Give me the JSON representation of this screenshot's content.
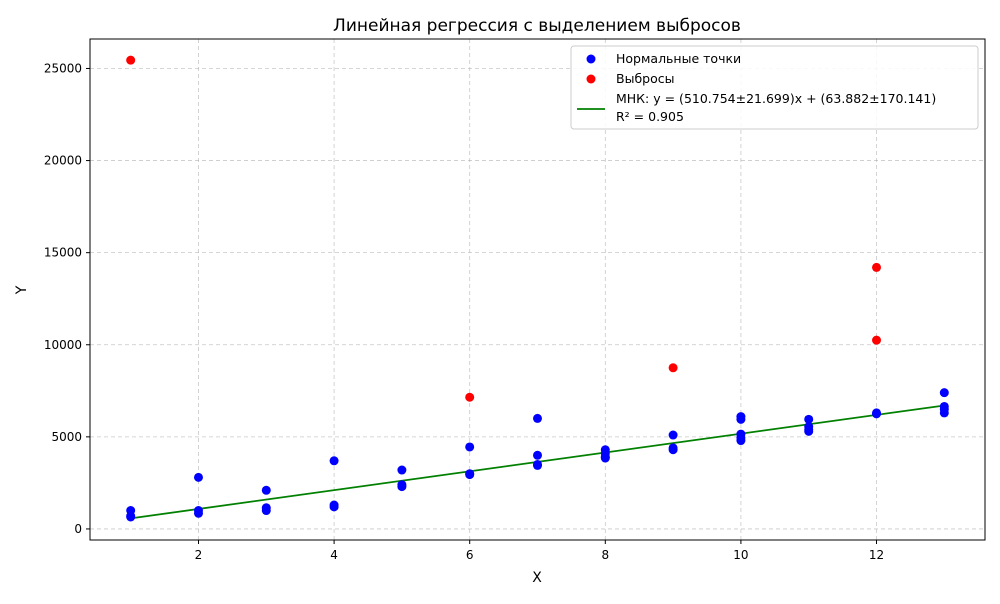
{
  "chart_data": {
    "type": "scatter",
    "title": "Линейная регрессия с выделением выбросов",
    "xlabel": "X",
    "ylabel": "Y",
    "xlim": [
      0.4,
      13.6
    ],
    "ylim": [
      -600,
      26600
    ],
    "x_ticks": [
      2,
      4,
      6,
      8,
      10,
      12
    ],
    "y_ticks": [
      0,
      5000,
      10000,
      15000,
      20000,
      25000
    ],
    "grid": true,
    "legend_position": "top-right",
    "series": [
      {
        "name": "Нормальные точки",
        "kind": "scatter",
        "color": "#0000ff",
        "points": [
          [
            1,
            1000
          ],
          [
            1,
            700
          ],
          [
            1,
            650
          ],
          [
            2,
            2800
          ],
          [
            2,
            1000
          ],
          [
            2,
            850
          ],
          [
            3,
            2100
          ],
          [
            3,
            1150
          ],
          [
            3,
            1000
          ],
          [
            4,
            3700
          ],
          [
            4,
            1300
          ],
          [
            4,
            1200
          ],
          [
            5,
            3200
          ],
          [
            5,
            2400
          ],
          [
            5,
            2300
          ],
          [
            6,
            4450
          ],
          [
            6,
            3000
          ],
          [
            6,
            2950
          ],
          [
            7,
            6000
          ],
          [
            7,
            4000
          ],
          [
            7,
            3500
          ],
          [
            7,
            3450
          ],
          [
            8,
            4300
          ],
          [
            8,
            4100
          ],
          [
            8,
            3900
          ],
          [
            8,
            3850
          ],
          [
            9,
            5100
          ],
          [
            9,
            4400
          ],
          [
            9,
            4300
          ],
          [
            10,
            6100
          ],
          [
            10,
            5950
          ],
          [
            10,
            5150
          ],
          [
            10,
            4950
          ],
          [
            10,
            4800
          ],
          [
            11,
            5950
          ],
          [
            11,
            5550
          ],
          [
            11,
            5400
          ],
          [
            11,
            5300
          ],
          [
            12,
            6300
          ],
          [
            12,
            6250
          ],
          [
            13,
            7400
          ],
          [
            13,
            6650
          ],
          [
            13,
            6500
          ],
          [
            13,
            6300
          ]
        ]
      },
      {
        "name": "Выбросы",
        "kind": "scatter",
        "color": "#ff0000",
        "points": [
          [
            1,
            25450
          ],
          [
            6,
            7150
          ],
          [
            9,
            8750
          ],
          [
            12,
            14200
          ],
          [
            12,
            10250
          ]
        ]
      },
      {
        "name": "МНК: y = (510.754±21.699)x + (63.882±170.141)",
        "name_line2": "R² = 0.905",
        "kind": "line",
        "color": "#008000",
        "slope": 510.754,
        "intercept": 63.882,
        "x_range": [
          1,
          13
        ]
      }
    ]
  }
}
